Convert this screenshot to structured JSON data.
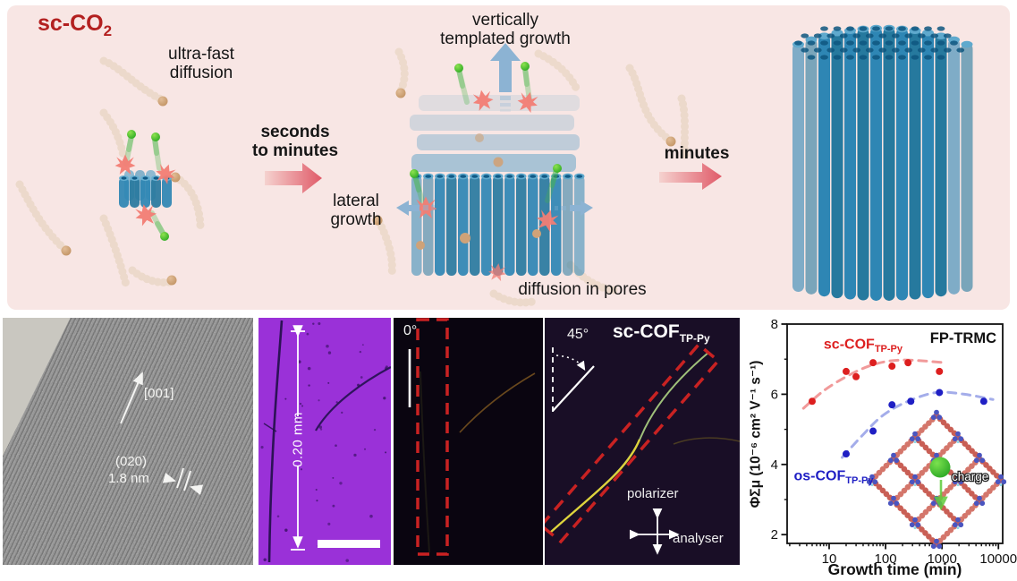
{
  "colors": {
    "pink_bg": "#f8e6e4",
    "title_red": "#b32020",
    "tube_blue": "#2e86b4",
    "arrow_blue": "#8cb3d3",
    "arrow_pink_dark": "#e05a68",
    "arrow_pink_light": "#f5d2cf",
    "purple_bg": "#9a31d8",
    "pol0_bg": "#0a0510",
    "pol45_bg": "#190e26",
    "red_dash": "#c92222"
  },
  "schematic": {
    "title_main": "sc-CO",
    "title_sub": "2",
    "stage1_label": [
      "ultra-fast",
      "diffusion"
    ],
    "arrow1_label": [
      "seconds",
      "to minutes"
    ],
    "stage2_top_label": [
      "vertically",
      "templated growth"
    ],
    "stage2_side_label": [
      "lateral",
      "growth"
    ],
    "stage2_bottom_label": "diffusion in pores",
    "arrow2_label": "minutes"
  },
  "tem": {
    "axis_label": "[001]",
    "plane_label": "(020)",
    "dspacing_label": "1.8 nm"
  },
  "optical": {
    "length_label": "0.20 mm"
  },
  "pol0": {
    "angle_label": "0°"
  },
  "pol45": {
    "angle_label": "45°",
    "sample_main": "sc-COF",
    "sample_sub": "TP-Py",
    "polarizer_label": "polarizer",
    "analyser_label": "analyser"
  },
  "chart_data": {
    "type": "scatter",
    "annotation": "FP-TRMC",
    "xlabel": "Growth time (min)",
    "ylabel": "ΦΣμ (10⁻⁶ cm² V⁻¹ s⁻¹)",
    "x_scale": "log",
    "xlim": [
      1.8,
      11900
    ],
    "ylim": [
      1.75,
      8
    ],
    "x_ticks": [
      10,
      100,
      1000,
      10000
    ],
    "y_ticks": [
      2,
      4,
      6,
      8
    ],
    "grid": false,
    "legend_position": "in-plot text labels",
    "inset_label": "charge",
    "series": [
      {
        "name": "sc-COF TP-Py",
        "label_main": "sc-COF",
        "label_sub": "TP-Py",
        "color": "#dd1f1f",
        "trend_color": "#ef8f8f",
        "label_pos": [
          40,
          7.3
        ],
        "x": [
          5,
          20,
          30,
          60,
          130,
          250,
          900
        ],
        "y": [
          5.8,
          6.65,
          6.5,
          6.9,
          6.8,
          6.9,
          6.65
        ],
        "trend": {
          "x": [
            3.5,
            8,
            20,
            50,
            120,
            300,
            1100
          ],
          "y": [
            5.6,
            6.1,
            6.5,
            6.8,
            6.95,
            6.97,
            6.9
          ]
        }
      },
      {
        "name": "os-COF TP-Py",
        "label_main": "os-COF",
        "label_sub": "TP-Py",
        "color": "#1f1fc4",
        "trend_color": "#9aa4e8",
        "label_pos": [
          12,
          3.55
        ],
        "x": [
          20,
          60,
          130,
          280,
          900,
          5500
        ],
        "y": [
          4.3,
          4.95,
          5.7,
          5.8,
          6.05,
          5.8
        ],
        "trend": {
          "x": [
            17,
            40,
            90,
            250,
            800,
            2500,
            8000
          ],
          "y": [
            4.2,
            4.85,
            5.4,
            5.8,
            6.05,
            6.0,
            5.85
          ]
        }
      }
    ]
  }
}
